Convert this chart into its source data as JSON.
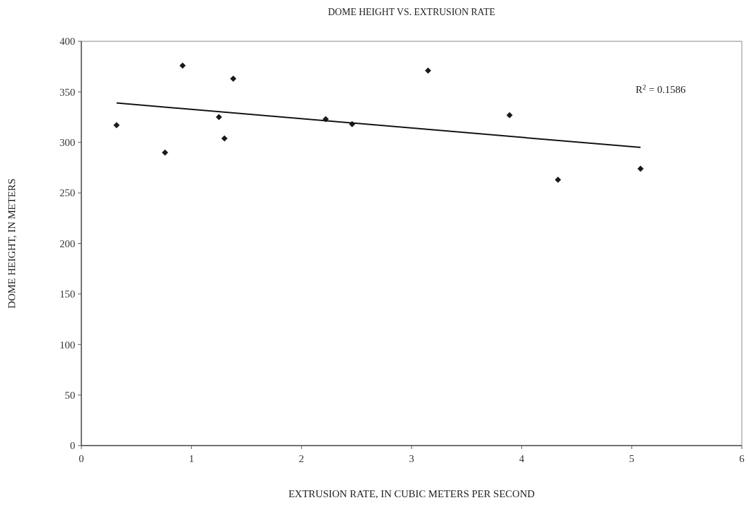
{
  "chart_data": {
    "type": "scatter",
    "title": "DOME HEIGHT VS. EXTRUSION RATE",
    "xlabel": "EXTRUSION RATE, IN CUBIC METERS PER SECOND",
    "ylabel": "DOME HEIGHT, IN METERS",
    "series": [
      {
        "color": "#1a1a1a",
        "marker": "diamond",
        "x": [
          0.32,
          0.76,
          0.92,
          1.25,
          1.3,
          1.38,
          2.22,
          2.46,
          3.15,
          3.89,
          4.33,
          5.08
        ],
        "values": [
          317,
          290,
          376,
          325,
          304,
          363,
          323,
          318,
          371,
          327,
          263,
          274
        ]
      },
      {
        "type": "line",
        "color": "#111111",
        "marker": "none",
        "x": [
          0.32,
          5.08
        ],
        "values": [
          339,
          295
        ]
      }
    ],
    "annotations": [
      "R$^{2}$ = 0.1586"
    ],
    "xlim": [
      0,
      6
    ],
    "ylim": [
      0,
      400
    ],
    "xticks": [
      0,
      1,
      2,
      3,
      4,
      5,
      6
    ],
    "yticks": [
      0,
      50,
      100,
      150,
      200,
      250,
      300,
      350,
      400
    ],
    "grid": false
  }
}
